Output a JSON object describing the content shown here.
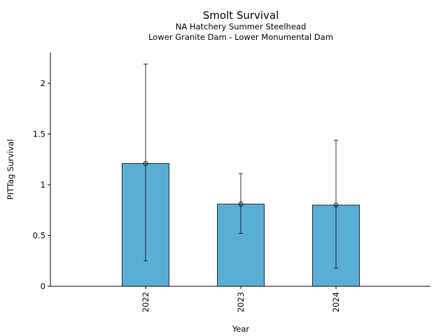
{
  "chart_data": {
    "type": "bar",
    "title": "Smolt Survival",
    "subtitle_lines": [
      "NA Hatchery Summer Steelhead",
      "Lower Granite Dam - Lower Monumental Dam"
    ],
    "xlabel": "Year",
    "ylabel": "PITTag Survival",
    "categories": [
      "2022",
      "2023",
      "2024"
    ],
    "values": [
      1.21,
      0.81,
      0.8
    ],
    "error_low": [
      0.25,
      0.52,
      0.18
    ],
    "error_high": [
      2.19,
      1.11,
      1.44
    ],
    "ylim": [
      0,
      2.3
    ],
    "yticks": [
      0,
      0.5,
      1,
      1.5,
      2
    ],
    "ytick_labels": [
      "0",
      "0.5",
      "1",
      "1.5",
      "2"
    ],
    "bar_color": "#5aaed6",
    "grid": false,
    "legend": "none"
  }
}
